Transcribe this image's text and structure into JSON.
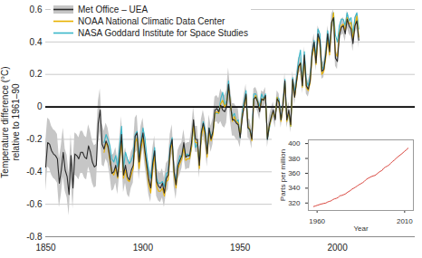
{
  "chart_data": [
    {
      "type": "line",
      "y_label": "Temperature difference (°C)\nrelative to 1961–90",
      "x": [
        1850,
        1851,
        1852,
        1853,
        1854,
        1855,
        1856,
        1857,
        1858,
        1859,
        1860,
        1861,
        1862,
        1863,
        1864,
        1865,
        1866,
        1867,
        1868,
        1869,
        1870,
        1871,
        1872,
        1873,
        1874,
        1875,
        1876,
        1877,
        1878,
        1879,
        1880,
        1881,
        1882,
        1883,
        1884,
        1885,
        1886,
        1887,
        1888,
        1889,
        1890,
        1891,
        1892,
        1893,
        1894,
        1895,
        1896,
        1897,
        1898,
        1899,
        1900,
        1901,
        1902,
        1903,
        1904,
        1905,
        1906,
        1907,
        1908,
        1909,
        1910,
        1911,
        1912,
        1913,
        1914,
        1915,
        1916,
        1917,
        1918,
        1919,
        1920,
        1921,
        1922,
        1923,
        1924,
        1925,
        1926,
        1927,
        1928,
        1929,
        1930,
        1931,
        1932,
        1933,
        1934,
        1935,
        1936,
        1937,
        1938,
        1939,
        1940,
        1941,
        1942,
        1943,
        1944,
        1945,
        1946,
        1947,
        1948,
        1949,
        1950,
        1951,
        1952,
        1953,
        1954,
        1955,
        1956,
        1957,
        1958,
        1959,
        1960,
        1961,
        1962,
        1963,
        1964,
        1965,
        1966,
        1967,
        1968,
        1969,
        1970,
        1971,
        1972,
        1973,
        1974,
        1975,
        1976,
        1977,
        1978,
        1979,
        1980,
        1981,
        1982,
        1983,
        1984,
        1985,
        1986,
        1987,
        1988,
        1989,
        1990,
        1991,
        1992,
        1993,
        1994,
        1995,
        1996,
        1997,
        1998,
        1999,
        2000,
        2001,
        2002,
        2003,
        2004,
        2005,
        2006,
        2007,
        2008,
        2009,
        2010,
        2011
      ],
      "series": [
        {
          "name": "Met Office – UEA",
          "color": "#2a2a2a",
          "values": [
            -0.37,
            -0.22,
            -0.23,
            -0.27,
            -0.29,
            -0.3,
            -0.32,
            -0.47,
            -0.39,
            -0.28,
            -0.39,
            -0.43,
            -0.54,
            -0.3,
            -0.5,
            -0.29,
            -0.3,
            -0.32,
            -0.28,
            -0.28,
            -0.31,
            -0.32,
            -0.24,
            -0.28,
            -0.34,
            -0.37,
            -0.36,
            -0.1,
            -0.02,
            -0.23,
            -0.26,
            -0.21,
            -0.24,
            -0.31,
            -0.41,
            -0.4,
            -0.36,
            -0.43,
            -0.31,
            -0.17,
            -0.42,
            -0.36,
            -0.43,
            -0.45,
            -0.39,
            -0.36,
            -0.18,
            -0.16,
            -0.34,
            -0.23,
            -0.16,
            -0.27,
            -0.36,
            -0.45,
            -0.5,
            -0.35,
            -0.27,
            -0.46,
            -0.49,
            -0.5,
            -0.47,
            -0.53,
            -0.44,
            -0.42,
            -0.26,
            -0.2,
            -0.4,
            -0.48,
            -0.36,
            -0.33,
            -0.3,
            -0.22,
            -0.31,
            -0.3,
            -0.3,
            -0.22,
            -0.08,
            -0.2,
            -0.2,
            -0.36,
            -0.16,
            -0.1,
            -0.16,
            -0.29,
            -0.13,
            -0.2,
            -0.15,
            -0.02,
            -0.01,
            -0.03,
            0.01,
            -0.02,
            -0.03,
            0.0,
            0.14,
            0.01,
            -0.08,
            -0.08,
            -0.1,
            -0.11,
            -0.19,
            -0.07,
            0.01,
            0.08,
            -0.13,
            -0.14,
            -0.2,
            0.05,
            0.06,
            0.03,
            -0.03,
            0.05,
            0.04,
            0.07,
            -0.2,
            -0.11,
            -0.06,
            -0.02,
            -0.08,
            0.05,
            0.03,
            -0.08,
            0.01,
            0.16,
            -0.08,
            -0.02,
            -0.11,
            0.17,
            0.06,
            0.16,
            0.25,
            0.27,
            0.13,
            0.32,
            0.13,
            0.11,
            0.16,
            0.33,
            0.4,
            0.27,
            0.45,
            0.41,
            0.22,
            0.23,
            0.32,
            0.45,
            0.34,
            0.52,
            0.55,
            0.3,
            0.28,
            0.44,
            0.49,
            0.5,
            0.45,
            0.54,
            0.5,
            0.48,
            0.39,
            0.5,
            0.53,
            0.41
          ],
          "uncertainty": [
            0.15,
            0.15,
            0.15,
            0.15,
            0.15,
            0.15,
            0.15,
            0.15,
            0.15,
            0.15,
            0.13,
            0.13,
            0.13,
            0.13,
            0.13,
            0.13,
            0.13,
            0.13,
            0.13,
            0.13,
            0.13,
            0.13,
            0.13,
            0.13,
            0.13,
            0.13,
            0.13,
            0.13,
            0.13,
            0.13,
            0.11,
            0.11,
            0.11,
            0.11,
            0.11,
            0.11,
            0.11,
            0.11,
            0.11,
            0.11,
            0.11,
            0.11,
            0.11,
            0.11,
            0.11,
            0.11,
            0.11,
            0.11,
            0.11,
            0.11,
            0.09,
            0.09,
            0.09,
            0.09,
            0.09,
            0.09,
            0.09,
            0.09,
            0.09,
            0.09,
            0.09,
            0.09,
            0.09,
            0.09,
            0.09,
            0.09,
            0.09,
            0.09,
            0.09,
            0.09,
            0.08,
            0.08,
            0.08,
            0.08,
            0.08,
            0.08,
            0.08,
            0.08,
            0.08,
            0.08,
            0.08,
            0.08,
            0.08,
            0.08,
            0.08,
            0.08,
            0.08,
            0.08,
            0.08,
            0.08,
            0.1,
            0.1,
            0.1,
            0.1,
            0.1,
            0.1,
            0.1,
            0.1,
            0.1,
            0.1,
            0.06,
            0.06,
            0.06,
            0.06,
            0.06,
            0.06,
            0.06,
            0.06,
            0.06,
            0.06,
            0.05,
            0.05,
            0.05,
            0.05,
            0.05,
            0.05,
            0.05,
            0.05,
            0.05,
            0.05,
            0.05,
            0.05,
            0.05,
            0.05,
            0.05,
            0.05,
            0.05,
            0.05,
            0.05,
            0.05,
            0.05,
            0.05,
            0.05,
            0.05,
            0.05,
            0.05,
            0.05,
            0.05,
            0.05,
            0.05,
            0.05,
            0.05,
            0.05,
            0.05,
            0.05,
            0.05,
            0.05,
            0.05,
            0.05,
            0.05,
            0.05,
            0.05,
            0.05,
            0.05,
            0.05,
            0.05,
            0.05,
            0.05,
            0.05,
            0.05,
            0.05,
            0.05
          ]
        },
        {
          "name": "NOAA National Climatic Data Center",
          "color": "#e8b100",
          "values": [
            null,
            null,
            null,
            null,
            null,
            null,
            null,
            null,
            null,
            null,
            null,
            null,
            null,
            null,
            null,
            null,
            null,
            null,
            null,
            null,
            null,
            null,
            null,
            null,
            null,
            null,
            null,
            null,
            null,
            null,
            -0.28,
            -0.22,
            -0.25,
            -0.33,
            -0.4,
            -0.42,
            -0.38,
            -0.44,
            -0.33,
            -0.2,
            -0.44,
            -0.39,
            -0.45,
            -0.46,
            -0.42,
            -0.38,
            -0.22,
            -0.19,
            -0.38,
            -0.26,
            -0.19,
            -0.29,
            -0.39,
            -0.48,
            -0.53,
            -0.39,
            -0.3,
            -0.49,
            -0.52,
            -0.52,
            -0.5,
            -0.55,
            -0.46,
            -0.45,
            -0.28,
            -0.22,
            -0.42,
            -0.5,
            -0.38,
            -0.35,
            -0.32,
            -0.25,
            -0.33,
            -0.32,
            -0.32,
            -0.25,
            -0.11,
            -0.22,
            -0.22,
            -0.38,
            -0.19,
            -0.12,
            -0.18,
            -0.31,
            -0.15,
            -0.21,
            -0.17,
            -0.04,
            -0.03,
            -0.04,
            0.02,
            0.04,
            0.0,
            0.02,
            0.12,
            0.02,
            -0.09,
            -0.06,
            -0.09,
            -0.1,
            -0.18,
            -0.06,
            0.0,
            0.07,
            -0.12,
            -0.14,
            -0.21,
            0.04,
            0.07,
            0.03,
            -0.02,
            0.04,
            0.05,
            0.06,
            -0.19,
            -0.12,
            -0.07,
            -0.03,
            -0.07,
            0.06,
            0.02,
            -0.09,
            0.0,
            0.15,
            -0.09,
            -0.03,
            -0.12,
            0.16,
            0.06,
            0.15,
            0.24,
            0.27,
            0.12,
            0.3,
            0.12,
            0.1,
            0.15,
            0.31,
            0.37,
            0.26,
            0.43,
            0.39,
            0.2,
            0.22,
            0.3,
            0.42,
            0.32,
            0.5,
            0.58,
            0.33,
            0.31,
            0.45,
            0.5,
            0.51,
            0.47,
            0.55,
            0.51,
            0.52,
            0.42,
            0.5,
            0.56,
            0.43
          ]
        },
        {
          "name": "NASA Goddard Institute for Space Studies",
          "color": "#3ab7c9",
          "values": [
            null,
            null,
            null,
            null,
            null,
            null,
            null,
            null,
            null,
            null,
            null,
            null,
            null,
            null,
            null,
            null,
            null,
            null,
            null,
            null,
            null,
            null,
            null,
            null,
            null,
            null,
            null,
            null,
            null,
            null,
            -0.22,
            -0.17,
            -0.2,
            -0.24,
            -0.32,
            -0.34,
            -0.3,
            -0.37,
            -0.24,
            -0.12,
            -0.38,
            -0.28,
            -0.32,
            -0.35,
            -0.33,
            -0.29,
            -0.17,
            -0.15,
            -0.31,
            -0.21,
            -0.13,
            -0.19,
            -0.31,
            -0.39,
            -0.44,
            -0.33,
            -0.25,
            -0.44,
            -0.47,
            -0.47,
            -0.46,
            -0.49,
            -0.41,
            -0.4,
            -0.24,
            -0.19,
            -0.4,
            -0.46,
            -0.35,
            -0.3,
            -0.31,
            -0.24,
            -0.3,
            -0.29,
            -0.31,
            -0.25,
            -0.1,
            -0.25,
            -0.23,
            -0.36,
            -0.17,
            -0.09,
            -0.14,
            -0.29,
            -0.13,
            -0.18,
            -0.16,
            -0.04,
            -0.04,
            -0.04,
            0.05,
            0.09,
            0.01,
            0.04,
            0.16,
            0.01,
            -0.06,
            -0.04,
            -0.09,
            -0.08,
            -0.19,
            -0.04,
            0.03,
            0.1,
            -0.12,
            -0.15,
            -0.18,
            0.08,
            0.08,
            0.04,
            0.0,
            0.08,
            0.05,
            0.08,
            -0.2,
            -0.13,
            -0.06,
            -0.03,
            -0.07,
            0.06,
            0.05,
            -0.08,
            0.01,
            0.17,
            -0.08,
            -0.04,
            -0.12,
            0.18,
            0.09,
            0.18,
            0.29,
            0.35,
            0.13,
            0.34,
            0.16,
            0.13,
            0.19,
            0.33,
            0.41,
            0.31,
            0.48,
            0.45,
            0.23,
            0.25,
            0.33,
            0.47,
            0.37,
            0.49,
            0.58,
            0.44,
            0.4,
            0.5,
            0.54,
            0.54,
            0.5,
            0.58,
            0.53,
            0.55,
            0.45,
            0.55,
            0.58,
            0.48
          ]
        }
      ],
      "xlim": [
        1850,
        2040
      ],
      "xticks": [
        1850,
        1900,
        1950,
        2000
      ],
      "ylim": [
        -0.8,
        0.6
      ],
      "yticks": [
        -0.8,
        -0.6,
        -0.4,
        -0.2,
        0,
        0.2,
        0.4,
        0.6
      ],
      "reference_lines": [
        0
      ],
      "grid": true,
      "legend": "top-left"
    },
    {
      "type": "line",
      "x_label": "Year",
      "y_label": "Parts per million",
      "x": [
        1958,
        1959,
        1960,
        1961,
        1962,
        1963,
        1964,
        1965,
        1966,
        1967,
        1968,
        1969,
        1970,
        1971,
        1972,
        1973,
        1974,
        1975,
        1976,
        1977,
        1978,
        1979,
        1980,
        1981,
        1982,
        1983,
        1984,
        1985,
        1986,
        1987,
        1988,
        1989,
        1990,
        1991,
        1992,
        1993,
        1994,
        1995,
        1996,
        1997,
        1998,
        1999,
        2000,
        2001,
        2002,
        2003,
        2004,
        2005,
        2006,
        2007,
        2008,
        2009,
        2010,
        2011,
        2012
      ],
      "values": [
        315.3,
        316.0,
        316.9,
        317.6,
        318.5,
        319.0,
        319.6,
        320.0,
        321.4,
        322.2,
        323.0,
        324.6,
        325.7,
        326.3,
        327.5,
        329.7,
        330.2,
        331.1,
        332.0,
        333.8,
        335.4,
        336.8,
        338.8,
        340.1,
        341.5,
        343.1,
        344.7,
        346.1,
        347.4,
        349.2,
        351.6,
        353.1,
        354.4,
        355.6,
        356.5,
        357.1,
        358.8,
        360.8,
        362.6,
        363.7,
        366.7,
        368.4,
        369.6,
        371.1,
        373.3,
        375.8,
        377.5,
        379.8,
        381.9,
        383.8,
        385.6,
        387.4,
        389.9,
        391.6,
        393.8
      ],
      "color": "#d9453d",
      "xlim": [
        1955,
        2015
      ],
      "xticks": [
        1960,
        2010
      ],
      "ylim": [
        310,
        405
      ],
      "yticks": [
        320,
        340,
        360,
        380,
        400
      ]
    }
  ]
}
